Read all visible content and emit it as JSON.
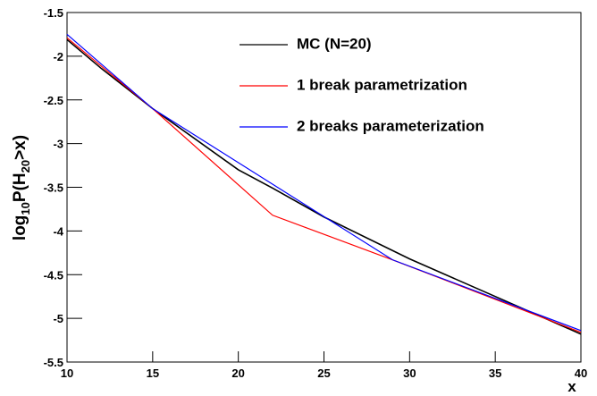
{
  "chart_data": {
    "type": "line",
    "x_label": "x",
    "y_label_parts": [
      "log",
      "10",
      "P(H",
      "20",
      ">x)"
    ],
    "xlim": [
      10,
      40
    ],
    "xticks": [
      10,
      15,
      20,
      25,
      30,
      35,
      40
    ],
    "ylim": [
      -5.5,
      -1.5
    ],
    "yticks": [
      -5.5,
      -5,
      -4.5,
      -4,
      -3.5,
      -3,
      -2.5,
      -2,
      -1.5
    ],
    "legend": "top-right",
    "series": [
      {
        "name": "MC (N=20)",
        "color": "#000000",
        "x": [
          10,
          12,
          15,
          20,
          22,
          25,
          30,
          35,
          40
        ],
        "values": [
          -1.81,
          -2.14,
          -2.6,
          -3.3,
          -3.51,
          -3.84,
          -4.32,
          -4.75,
          -5.18
        ]
      },
      {
        "name": "1 break parametrization",
        "color": "#ff0000",
        "x": [
          10,
          15,
          22,
          29,
          40
        ],
        "values": [
          -1.79,
          -2.6,
          -3.82,
          -4.33,
          -5.16
        ]
      },
      {
        "name": "2 breaks parameterization",
        "color": "#0000ff",
        "x": [
          10,
          15,
          29,
          40
        ],
        "values": [
          -1.75,
          -2.6,
          -4.33,
          -5.14
        ]
      }
    ]
  }
}
